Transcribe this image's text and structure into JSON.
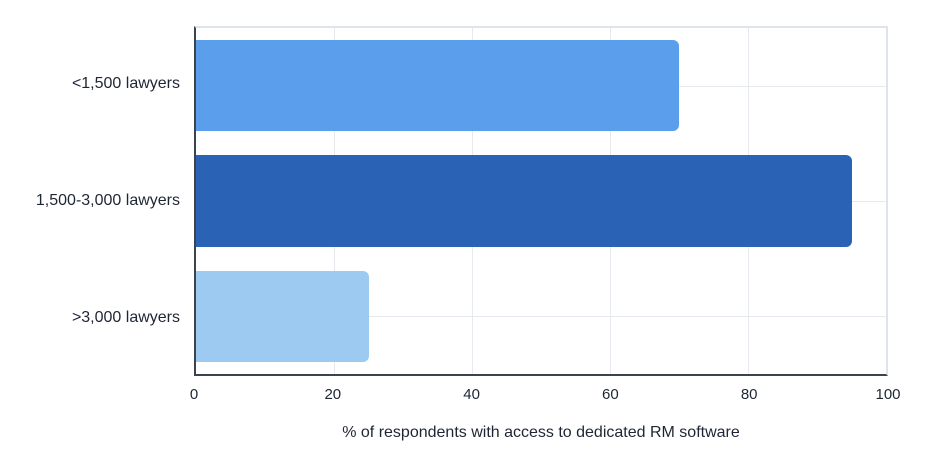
{
  "chart_data": {
    "type": "bar",
    "orientation": "horizontal",
    "title": "",
    "categories": [
      "<1,500 lawyers",
      "1,500-3,000 lawyers",
      ">3,000 lawyers"
    ],
    "values": [
      70,
      95,
      25
    ],
    "bar_colors": [
      "#5B9EEB",
      "#2A63B5",
      "#9DCAF1"
    ],
    "xlabel": "% of respondents with access to dedicated RM software",
    "ylabel": "",
    "xlim": [
      0,
      100
    ],
    "xticks": [
      0,
      20,
      40,
      60,
      80,
      100
    ],
    "grid": "vertical gridlines at x ticks plus horizontal gridline at each category center",
    "legend": "none",
    "style": {
      "background": "#FFFFFF",
      "axis_color": "#3A4350",
      "plot_border_color": "#DFE4EA",
      "gridline_color": "#E6E9ED",
      "text_color": "#1E2634"
    }
  }
}
